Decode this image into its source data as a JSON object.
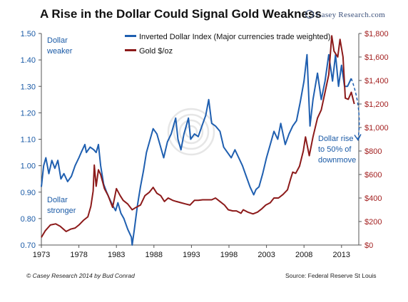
{
  "title": "A Rise in the Dollar Could Signal Gold Weakness",
  "brand": "Casey Research.com",
  "footer_left": "© Casey Research 2014 by Bud Conrad",
  "footer_right": "Source: Federal Reserve St Louis",
  "annotations": {
    "dollar_weaker": [
      "Dollar",
      "weaker"
    ],
    "dollar_stronger": [
      "Dollar",
      "stronger"
    ],
    "dollar_rise": [
      "Dollar rise",
      "to 50% of",
      "downmove"
    ]
  },
  "colors": {
    "dollar_series": "#1f5fb0",
    "gold_series": "#8c1a1a",
    "left_axis_text": "#1a5aa6",
    "right_axis_text": "#a32020",
    "annotation": "#1a5aa6"
  },
  "chart_data": {
    "type": "line",
    "x_axis": {
      "type": "year",
      "range": [
        1973,
        2015.3
      ],
      "ticks": [
        1973,
        1978,
        1983,
        1988,
        1993,
        1998,
        2003,
        2008,
        2013
      ]
    },
    "y_left": {
      "range": [
        0.7,
        1.5
      ],
      "ticks": [
        "0.70",
        "0.80",
        "0.90",
        "1.00",
        "1.10",
        "1.20",
        "1.30",
        "1.40",
        "1.50"
      ]
    },
    "y_right": {
      "range": [
        0,
        1800
      ],
      "ticks": [
        "$0",
        "$200",
        "$400",
        "$600",
        "$800",
        "$1,000",
        "$1,200",
        "$1,400",
        "$1,600",
        "$1,800"
      ]
    },
    "grid": false,
    "legend_position": "top",
    "series": [
      {
        "name": "Inverted Dollar Index (Major currencies trade weighted)",
        "axis": "left",
        "points": [
          [
            1973.0,
            0.92
          ],
          [
            1973.3,
            1.0
          ],
          [
            1973.6,
            1.03
          ],
          [
            1974.0,
            0.97
          ],
          [
            1974.4,
            1.02
          ],
          [
            1974.8,
            0.99
          ],
          [
            1975.2,
            1.02
          ],
          [
            1975.6,
            0.95
          ],
          [
            1976.0,
            0.97
          ],
          [
            1976.5,
            0.94
          ],
          [
            1977.0,
            0.96
          ],
          [
            1977.5,
            1.0
          ],
          [
            1978.0,
            1.03
          ],
          [
            1978.3,
            1.05
          ],
          [
            1978.8,
            1.08
          ],
          [
            1979.0,
            1.05
          ],
          [
            1979.5,
            1.07
          ],
          [
            1980.0,
            1.06
          ],
          [
            1980.3,
            1.05
          ],
          [
            1980.6,
            1.08
          ],
          [
            1980.9,
            1.0
          ],
          [
            1981.3,
            0.93
          ],
          [
            1981.7,
            0.9
          ],
          [
            1982.0,
            0.88
          ],
          [
            1982.5,
            0.85
          ],
          [
            1982.9,
            0.83
          ],
          [
            1983.2,
            0.86
          ],
          [
            1983.6,
            0.82
          ],
          [
            1984.0,
            0.8
          ],
          [
            1984.5,
            0.76
          ],
          [
            1985.0,
            0.73
          ],
          [
            1985.1,
            0.7
          ],
          [
            1985.4,
            0.76
          ],
          [
            1985.8,
            0.85
          ],
          [
            1986.2,
            0.92
          ],
          [
            1986.6,
            0.98
          ],
          [
            1987.0,
            1.05
          ],
          [
            1987.5,
            1.1
          ],
          [
            1987.9,
            1.14
          ],
          [
            1988.4,
            1.12
          ],
          [
            1988.8,
            1.08
          ],
          [
            1989.3,
            1.03
          ],
          [
            1989.8,
            1.09
          ],
          [
            1990.3,
            1.12
          ],
          [
            1990.9,
            1.18
          ],
          [
            1991.2,
            1.1
          ],
          [
            1991.6,
            1.06
          ],
          [
            1992.0,
            1.12
          ],
          [
            1992.6,
            1.18
          ],
          [
            1992.9,
            1.1
          ],
          [
            1993.4,
            1.12
          ],
          [
            1993.9,
            1.11
          ],
          [
            1994.4,
            1.15
          ],
          [
            1994.9,
            1.19
          ],
          [
            1995.3,
            1.25
          ],
          [
            1995.7,
            1.16
          ],
          [
            1996.2,
            1.15
          ],
          [
            1996.8,
            1.13
          ],
          [
            1997.3,
            1.07
          ],
          [
            1997.8,
            1.05
          ],
          [
            1998.3,
            1.03
          ],
          [
            1998.8,
            1.06
          ],
          [
            1999.3,
            1.03
          ],
          [
            1999.8,
            1.0
          ],
          [
            2000.3,
            0.96
          ],
          [
            2000.8,
            0.92
          ],
          [
            2001.3,
            0.89
          ],
          [
            2001.6,
            0.91
          ],
          [
            2002.0,
            0.92
          ],
          [
            2002.5,
            0.97
          ],
          [
            2003.0,
            1.03
          ],
          [
            2003.5,
            1.08
          ],
          [
            2004.0,
            1.13
          ],
          [
            2004.5,
            1.1
          ],
          [
            2004.9,
            1.16
          ],
          [
            2005.5,
            1.08
          ],
          [
            2006.0,
            1.12
          ],
          [
            2006.5,
            1.15
          ],
          [
            2007.0,
            1.17
          ],
          [
            2007.5,
            1.24
          ],
          [
            2008.0,
            1.32
          ],
          [
            2008.4,
            1.42
          ],
          [
            2008.8,
            1.15
          ],
          [
            2009.2,
            1.25
          ],
          [
            2009.8,
            1.35
          ],
          [
            2010.3,
            1.25
          ],
          [
            2010.8,
            1.32
          ],
          [
            2011.3,
            1.42
          ],
          [
            2011.8,
            1.32
          ],
          [
            2012.2,
            1.42
          ],
          [
            2012.6,
            1.3
          ],
          [
            2013.0,
            1.38
          ],
          [
            2013.4,
            1.3
          ],
          [
            2013.8,
            1.3
          ],
          [
            2014.3,
            1.33
          ]
        ]
      },
      {
        "name": "Gold $/oz",
        "axis": "right",
        "points": [
          [
            1973.0,
            65
          ],
          [
            1973.5,
            120
          ],
          [
            1974.2,
            170
          ],
          [
            1974.9,
            180
          ],
          [
            1975.5,
            160
          ],
          [
            1976.3,
            115
          ],
          [
            1976.9,
            135
          ],
          [
            1977.5,
            145
          ],
          [
            1978.0,
            170
          ],
          [
            1978.6,
            210
          ],
          [
            1979.2,
            240
          ],
          [
            1979.6,
            330
          ],
          [
            1979.9,
            460
          ],
          [
            1980.05,
            680
          ],
          [
            1980.3,
            500
          ],
          [
            1980.6,
            640
          ],
          [
            1980.9,
            600
          ],
          [
            1981.4,
            480
          ],
          [
            1981.9,
            420
          ],
          [
            1982.5,
            320
          ],
          [
            1983.0,
            480
          ],
          [
            1983.5,
            420
          ],
          [
            1983.9,
            380
          ],
          [
            1984.5,
            350
          ],
          [
            1985.1,
            300
          ],
          [
            1985.6,
            320
          ],
          [
            1986.2,
            340
          ],
          [
            1986.8,
            420
          ],
          [
            1987.4,
            450
          ],
          [
            1987.9,
            490
          ],
          [
            1988.4,
            440
          ],
          [
            1988.9,
            420
          ],
          [
            1989.4,
            370
          ],
          [
            1989.9,
            400
          ],
          [
            1990.5,
            380
          ],
          [
            1991.0,
            370
          ],
          [
            1991.6,
            360
          ],
          [
            1992.2,
            350
          ],
          [
            1992.8,
            340
          ],
          [
            1993.4,
            380
          ],
          [
            1993.9,
            380
          ],
          [
            1994.5,
            385
          ],
          [
            1995.1,
            385
          ],
          [
            1995.7,
            385
          ],
          [
            1996.2,
            400
          ],
          [
            1996.8,
            370
          ],
          [
            1997.4,
            340
          ],
          [
            1997.9,
            300
          ],
          [
            1998.5,
            290
          ],
          [
            1999.0,
            290
          ],
          [
            1999.6,
            270
          ],
          [
            1999.9,
            300
          ],
          [
            2000.5,
            280
          ],
          [
            2001.2,
            265
          ],
          [
            2001.8,
            280
          ],
          [
            2002.4,
            310
          ],
          [
            2002.9,
            340
          ],
          [
            2003.5,
            360
          ],
          [
            2004.0,
            400
          ],
          [
            2004.6,
            400
          ],
          [
            2005.2,
            430
          ],
          [
            2005.8,
            470
          ],
          [
            2006.2,
            560
          ],
          [
            2006.5,
            620
          ],
          [
            2006.9,
            610
          ],
          [
            2007.4,
            670
          ],
          [
            2007.9,
            800
          ],
          [
            2008.2,
            920
          ],
          [
            2008.7,
            760
          ],
          [
            2009.2,
            920
          ],
          [
            2009.8,
            1080
          ],
          [
            2010.3,
            1150
          ],
          [
            2010.8,
            1300
          ],
          [
            2011.3,
            1450
          ],
          [
            2011.7,
            1780
          ],
          [
            2012.0,
            1650
          ],
          [
            2012.5,
            1600
          ],
          [
            2012.8,
            1750
          ],
          [
            2013.2,
            1600
          ],
          [
            2013.5,
            1250
          ],
          [
            2013.9,
            1240
          ],
          [
            2014.3,
            1300
          ],
          [
            2014.7,
            1200
          ]
        ]
      }
    ],
    "projection": {
      "series": "Inverted Dollar Index (Major currencies trade weighted)",
      "style": "dashed",
      "points": [
        [
          2014.3,
          1.33
        ],
        [
          2015.2,
          1.1
        ]
      ]
    }
  }
}
